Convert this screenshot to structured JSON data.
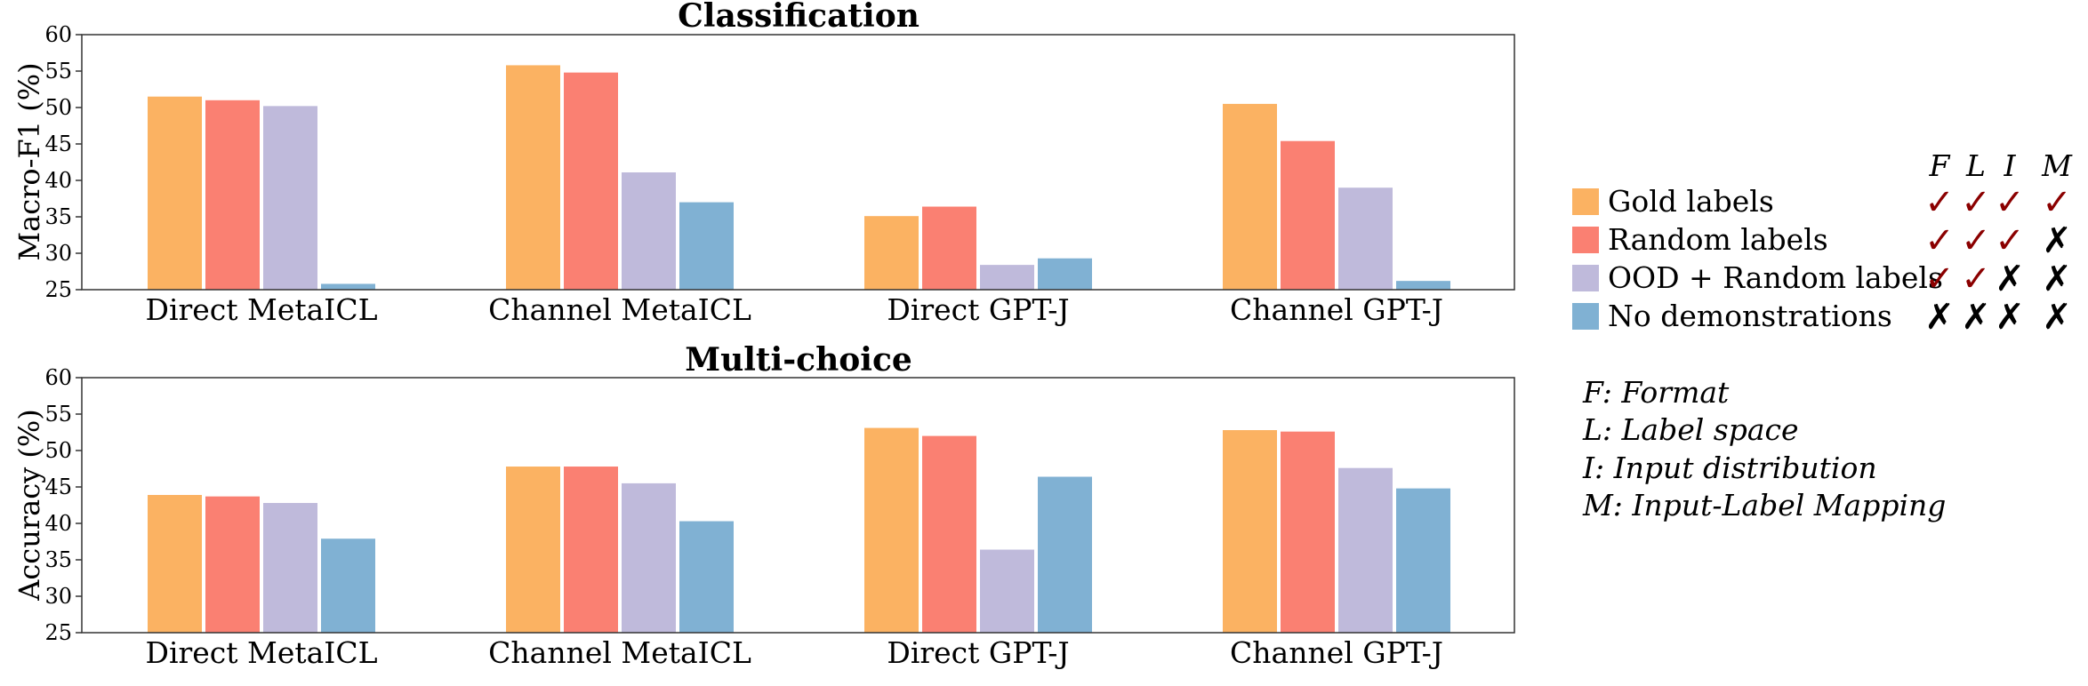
{
  "chart_data": [
    {
      "type": "bar",
      "title": "Classification",
      "ylabel": "Macro-F1 (%)",
      "xlabel": "",
      "ylim": [
        25,
        60
      ],
      "yticks": [
        25,
        30,
        35,
        40,
        45,
        50,
        55,
        60
      ],
      "categories": [
        "Direct MetaICL",
        "Channel MetaICL",
        "Direct GPT-J",
        "Channel GPT-J"
      ],
      "series": [
        {
          "name": "Gold labels",
          "color": "#fbb262",
          "values": [
            51.5,
            55.8,
            35.1,
            50.5
          ]
        },
        {
          "name": "Random labels",
          "color": "#fa8072",
          "values": [
            51.0,
            54.8,
            36.4,
            45.4
          ]
        },
        {
          "name": "OOD + Random labels",
          "color": "#bfbadb",
          "values": [
            50.2,
            41.1,
            28.4,
            39.0
          ]
        },
        {
          "name": "No demonstrations",
          "color": "#80b1d3",
          "values": [
            25.8,
            37.0,
            29.3,
            26.2
          ]
        }
      ]
    },
    {
      "type": "bar",
      "title": "Multi-choice",
      "ylabel": "Accuracy (%)",
      "xlabel": "",
      "ylim": [
        25,
        60
      ],
      "yticks": [
        25,
        30,
        35,
        40,
        45,
        50,
        55,
        60
      ],
      "categories": [
        "Direct MetaICL",
        "Channel MetaICL",
        "Direct GPT-J",
        "Channel GPT-J"
      ],
      "series": [
        {
          "name": "Gold labels",
          "color": "#fbb262",
          "values": [
            43.9,
            47.8,
            53.1,
            52.8
          ]
        },
        {
          "name": "Random labels",
          "color": "#fa8072",
          "values": [
            43.7,
            47.8,
            52.0,
            52.6
          ]
        },
        {
          "name": "OOD + Random labels",
          "color": "#bfbadb",
          "values": [
            42.8,
            45.5,
            36.4,
            47.6
          ]
        },
        {
          "name": "No demonstrations",
          "color": "#80b1d3",
          "values": [
            37.9,
            40.3,
            46.4,
            44.8
          ]
        }
      ]
    }
  ],
  "legend": {
    "columns": [
      "F",
      "L",
      "I",
      "M"
    ],
    "check_symbol": "✓",
    "cross_symbol": "✗",
    "check_color": "#8b0000",
    "cross_color": "#000000",
    "rows": [
      {
        "label": "Gold labels",
        "color": "#fbb262",
        "marks": [
          true,
          true,
          true,
          true
        ]
      },
      {
        "label": "Random labels",
        "color": "#fa8072",
        "marks": [
          true,
          true,
          true,
          false
        ]
      },
      {
        "label": "OOD + Random labels",
        "color": "#bfbadb",
        "marks": [
          true,
          true,
          false,
          false
        ]
      },
      {
        "label": "No demonstrations",
        "color": "#80b1d3",
        "marks": [
          false,
          false,
          false,
          false
        ]
      }
    ]
  },
  "notes": [
    "F: Format",
    "L: Label space",
    "I: Input distribution",
    "M: Input-Label Mapping"
  ]
}
